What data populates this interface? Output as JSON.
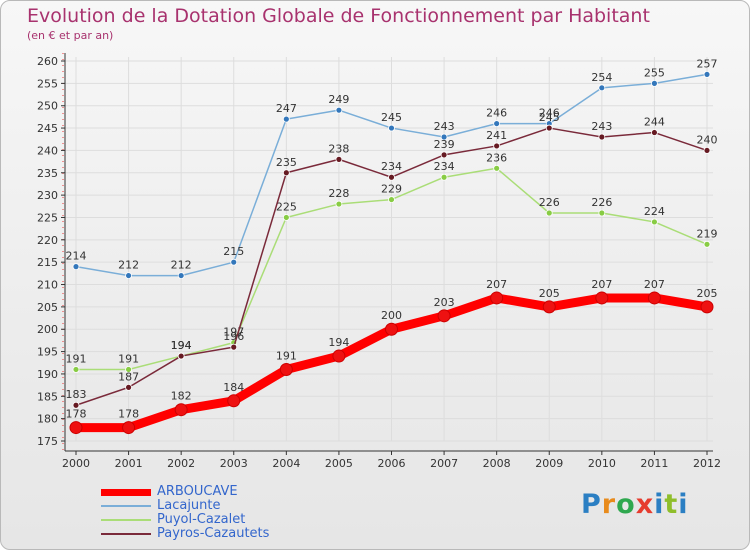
{
  "chart_data": {
    "type": "line",
    "title": "Evolution de la Dotation Globale de Fonctionnement par Habitant",
    "subtitle": "(en € et par an)",
    "categories": [
      "2000",
      "2001",
      "2002",
      "2003",
      "2004",
      "2005",
      "2006",
      "2007",
      "2008",
      "2009",
      "2010",
      "2011",
      "2012"
    ],
    "ylim": [
      175,
      260
    ],
    "yticks": [
      175,
      180,
      185,
      190,
      195,
      200,
      205,
      210,
      215,
      220,
      225,
      230,
      235,
      240,
      245,
      250,
      255,
      260
    ],
    "series": [
      {
        "name": "ARBOUCAVE",
        "color": "#ff0000",
        "marker": "#ee1111",
        "values": [
          178,
          178,
          182,
          184,
          191,
          194,
          200,
          203,
          207,
          205,
          207,
          207,
          205
        ]
      },
      {
        "name": "Lacajunte",
        "color": "#7aaed8",
        "marker": "#3377bb",
        "values": [
          214,
          212,
          212,
          215,
          247,
          249,
          245,
          243,
          246,
          246,
          254,
          255,
          257
        ]
      },
      {
        "name": "Puyol-Cazalet",
        "color": "#aadd77",
        "marker": "#88cc44",
        "values": [
          191,
          191,
          194,
          197,
          225,
          228,
          229,
          234,
          236,
          226,
          226,
          224,
          219
        ]
      },
      {
        "name": "Payros-Cazautets",
        "color": "#7a2a3a",
        "marker": "#661a22",
        "values": [
          183,
          187,
          194,
          196,
          235,
          238,
          234,
          239,
          241,
          245,
          243,
          244,
          240
        ]
      }
    ]
  },
  "logo": {
    "p": "P",
    "r": "r",
    "o": "o",
    "x": "x",
    "i": "i",
    "t": "t",
    "i2": "i"
  }
}
